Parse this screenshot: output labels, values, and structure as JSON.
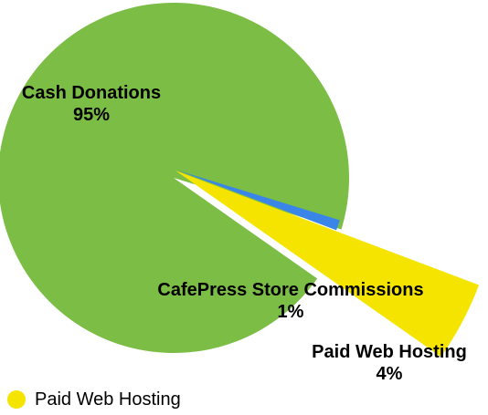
{
  "chart_data": {
    "type": "pie",
    "title": "",
    "slices": [
      {
        "name": "Cash Donations",
        "label": "Cash Donations",
        "percent_label": "95%",
        "value": 95,
        "color": "#7bbd45"
      },
      {
        "name": "CafePress Store Commissions",
        "label": "CafePress Store Commissions",
        "percent_label": "1%",
        "value": 1,
        "color": "#3a86e8"
      },
      {
        "name": "Paid Web Hosting",
        "label": "Paid Web Hosting",
        "percent_label": "4%",
        "value": 4,
        "color": "#f5e400"
      }
    ],
    "legend": {
      "placement": "bottom-left",
      "visible_entries": [
        {
          "name": "Paid Web Hosting",
          "color": "#f5e400"
        }
      ]
    }
  }
}
